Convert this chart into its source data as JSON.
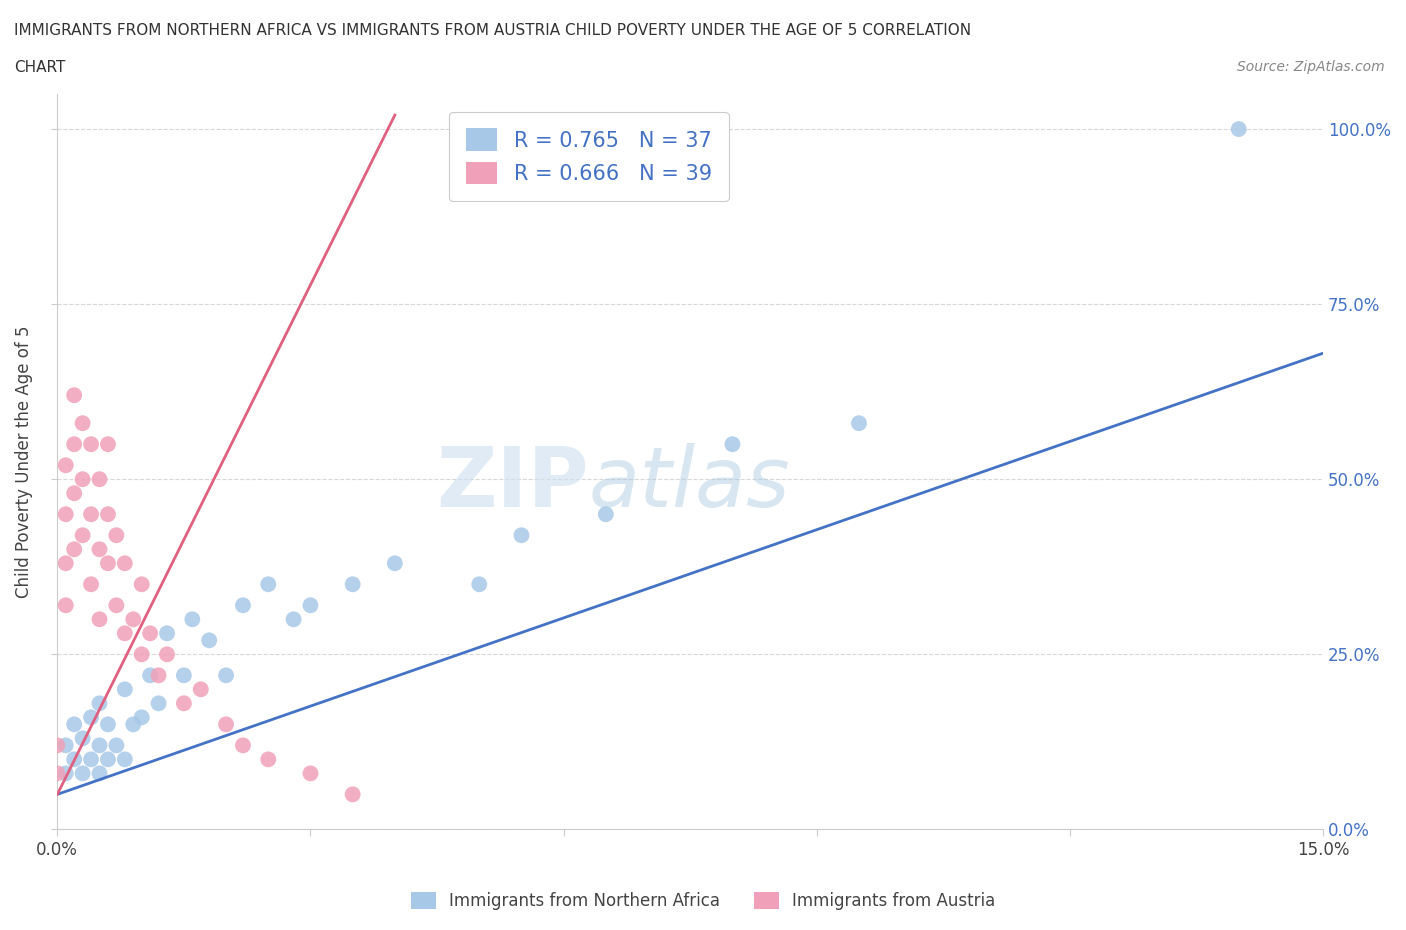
{
  "title_line1": "IMMIGRANTS FROM NORTHERN AFRICA VS IMMIGRANTS FROM AUSTRIA CHILD POVERTY UNDER THE AGE OF 5 CORRELATION",
  "title_line2": "CHART",
  "source": "Source: ZipAtlas.com",
  "xlabel_blue": "Immigrants from Northern Africa",
  "xlabel_pink": "Immigrants from Austria",
  "ylabel": "Child Poverty Under the Age of 5",
  "xlim": [
    0.0,
    0.15
  ],
  "ylim": [
    0.0,
    1.05
  ],
  "yticks": [
    0.0,
    0.25,
    0.5,
    0.75,
    1.0
  ],
  "ytick_labels": [
    "0.0%",
    "25.0%",
    "50.0%",
    "75.0%",
    "100.0%"
  ],
  "xtick_positions": [
    0.0,
    0.03,
    0.06,
    0.09,
    0.12,
    0.15
  ],
  "xtick_labels": [
    "0.0%",
    "",
    "",
    "",
    "",
    "15.0%"
  ],
  "R_blue": 0.765,
  "N_blue": 37,
  "R_pink": 0.666,
  "N_pink": 39,
  "blue_color": "#a8c8e8",
  "pink_color": "#f0a0b8",
  "line_blue": "#4472c4",
  "line_pink": "#e06080",
  "legend_text_color": "#4472c4",
  "blue_scatter_x": [
    0.001,
    0.001,
    0.002,
    0.002,
    0.003,
    0.003,
    0.004,
    0.004,
    0.005,
    0.005,
    0.005,
    0.006,
    0.006,
    0.007,
    0.008,
    0.008,
    0.009,
    0.01,
    0.011,
    0.012,
    0.013,
    0.015,
    0.016,
    0.018,
    0.02,
    0.022,
    0.025,
    0.028,
    0.03,
    0.035,
    0.04,
    0.05,
    0.055,
    0.065,
    0.08,
    0.095,
    0.14
  ],
  "blue_scatter_y": [
    0.08,
    0.12,
    0.1,
    0.15,
    0.08,
    0.13,
    0.1,
    0.16,
    0.08,
    0.12,
    0.18,
    0.1,
    0.15,
    0.12,
    0.1,
    0.2,
    0.15,
    0.16,
    0.22,
    0.18,
    0.28,
    0.22,
    0.3,
    0.27,
    0.22,
    0.32,
    0.35,
    0.3,
    0.32,
    0.35,
    0.38,
    0.35,
    0.42,
    0.45,
    0.55,
    0.58,
    1.0
  ],
  "pink_scatter_x": [
    0.0,
    0.0,
    0.001,
    0.001,
    0.001,
    0.001,
    0.002,
    0.002,
    0.002,
    0.002,
    0.003,
    0.003,
    0.003,
    0.004,
    0.004,
    0.004,
    0.005,
    0.005,
    0.005,
    0.006,
    0.006,
    0.006,
    0.007,
    0.007,
    0.008,
    0.008,
    0.009,
    0.01,
    0.01,
    0.011,
    0.012,
    0.013,
    0.015,
    0.017,
    0.02,
    0.022,
    0.025,
    0.03,
    0.035
  ],
  "pink_scatter_y": [
    0.08,
    0.12,
    0.32,
    0.38,
    0.45,
    0.52,
    0.4,
    0.48,
    0.55,
    0.62,
    0.42,
    0.5,
    0.58,
    0.35,
    0.45,
    0.55,
    0.3,
    0.4,
    0.5,
    0.38,
    0.45,
    0.55,
    0.32,
    0.42,
    0.28,
    0.38,
    0.3,
    0.25,
    0.35,
    0.28,
    0.22,
    0.25,
    0.18,
    0.2,
    0.15,
    0.12,
    0.1,
    0.08,
    0.05
  ],
  "blue_line_x": [
    0.0,
    0.15
  ],
  "blue_line_y": [
    0.05,
    0.68
  ],
  "pink_line_x": [
    0.0,
    0.04
  ],
  "pink_line_y": [
    0.05,
    1.02
  ],
  "watermark_zip": "ZIP",
  "watermark_atlas": "atlas",
  "background_color": "#ffffff",
  "grid_color": "#d8d8d8"
}
